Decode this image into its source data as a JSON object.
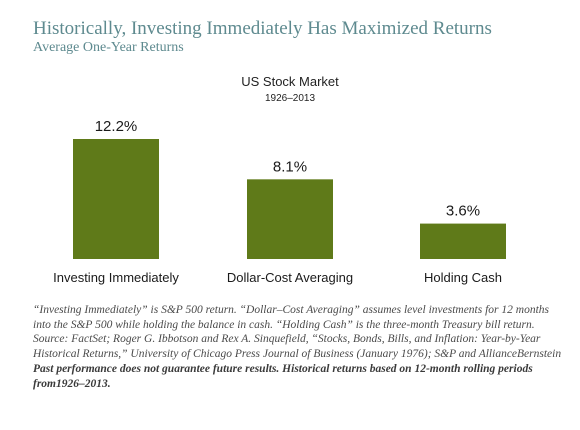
{
  "page": {
    "title": "Historically, Investing Immediately Has Maximized Returns",
    "subtitle": "Average One-Year Returns"
  },
  "chart_data": {
    "type": "bar",
    "title": "US Stock Market",
    "subtitle": "1926–2013",
    "categories": [
      "Investing Immediately",
      "Dollar-Cost Averaging",
      "Holding Cash"
    ],
    "values": [
      12.2,
      8.1,
      3.6
    ],
    "data_labels": [
      "12.2%",
      "8.1%",
      "3.6%"
    ],
    "ylim": [
      0,
      14
    ],
    "xlabel": "",
    "ylabel": "",
    "grid": false,
    "bar_color": "#5f7a19"
  },
  "footnotes": {
    "definition": "“Investing Immediately” is S&P 500 return. “Dollar–Cost Averaging” assumes level investments for 12 months into the S&P 500 while holding the balance in cash. “Holding Cash” is the three-month Treasury bill return.",
    "source": "Source: FactSet; Roger G. Ibbotson and Rex A. Sinquefield, “Stocks, Bonds, Bills, and Inflation: Year-by-Year Historical Returns,” University of Chicago Press Journal of Business (January 1976); S&P and AllianceBernstein",
    "disclaimer": "Past performance does not guarantee future results. Historical returns based on 12-month rolling periods from1926–2013."
  },
  "colors": {
    "heading": "#5e8a8f",
    "bar": "#5f7a19"
  }
}
